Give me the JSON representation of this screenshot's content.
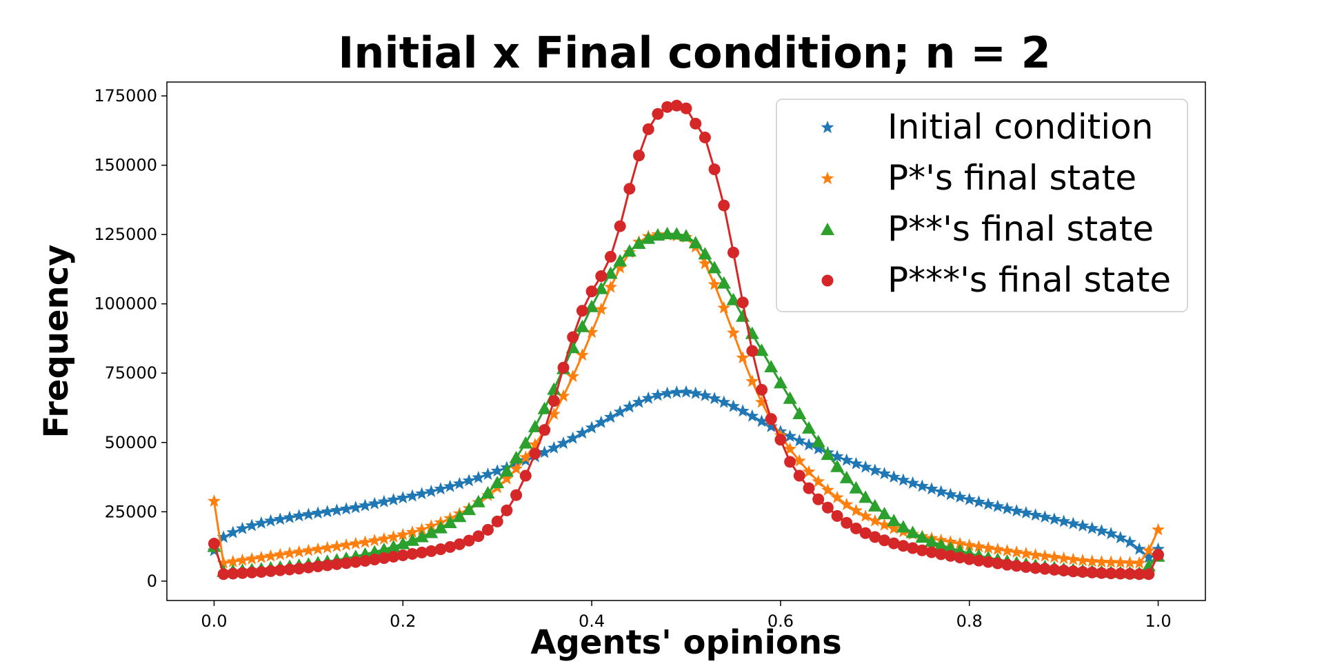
{
  "chart_data": {
    "type": "line",
    "title": "Initial x Final condition; n = 2",
    "xlabel": "Agents' opinions",
    "ylabel": "Frequency",
    "xlim": [
      -0.05,
      1.05
    ],
    "ylim": [
      -7000,
      180000
    ],
    "xticks": [
      0.0,
      0.2,
      0.4,
      0.6,
      0.8,
      1.0
    ],
    "xtick_labels": [
      "0.0",
      "0.2",
      "0.4",
      "0.6",
      "0.8",
      "1.0"
    ],
    "yticks": [
      0,
      25000,
      50000,
      75000,
      100000,
      125000,
      150000,
      175000
    ],
    "ytick_labels": [
      "0",
      "25000",
      "50000",
      "75000",
      "100000",
      "125000",
      "150000",
      "175000"
    ],
    "grid": false,
    "legend_position": "top-right",
    "x": [
      0.0,
      0.01,
      0.02,
      0.03,
      0.04,
      0.05,
      0.06,
      0.07,
      0.08,
      0.09,
      0.1,
      0.11,
      0.12,
      0.13,
      0.14,
      0.15,
      0.16,
      0.17,
      0.18,
      0.19,
      0.2,
      0.21,
      0.22,
      0.23,
      0.24,
      0.25,
      0.26,
      0.27,
      0.28,
      0.29,
      0.3,
      0.31,
      0.32,
      0.33,
      0.34,
      0.35,
      0.36,
      0.37,
      0.38,
      0.39,
      0.4,
      0.41,
      0.42,
      0.43,
      0.44,
      0.45,
      0.46,
      0.47,
      0.48,
      0.49,
      0.5,
      0.51,
      0.52,
      0.53,
      0.54,
      0.55,
      0.56,
      0.57,
      0.58,
      0.59,
      0.6,
      0.61,
      0.62,
      0.63,
      0.64,
      0.65,
      0.66,
      0.67,
      0.68,
      0.69,
      0.7,
      0.71,
      0.72,
      0.73,
      0.74,
      0.75,
      0.76,
      0.77,
      0.78,
      0.79,
      0.8,
      0.81,
      0.82,
      0.83,
      0.84,
      0.85,
      0.86,
      0.87,
      0.88,
      0.89,
      0.9,
      0.91,
      0.92,
      0.93,
      0.94,
      0.95,
      0.96,
      0.97,
      0.98,
      0.99,
      1.0
    ],
    "series": [
      {
        "name": "Initial condition",
        "marker": "star",
        "color": "#1f77b4",
        "values": [
          11000,
          15800,
          17500,
          18900,
          20000,
          20900,
          21700,
          22300,
          22900,
          23500,
          24000,
          24500,
          25000,
          25500,
          26000,
          26500,
          27200,
          27900,
          28600,
          29300,
          30000,
          30700,
          31500,
          32300,
          33200,
          34100,
          35100,
          36200,
          37300,
          38500,
          39700,
          40900,
          42200,
          43500,
          44900,
          46400,
          48000,
          49700,
          51500,
          53400,
          55300,
          57200,
          59100,
          61000,
          62800,
          64500,
          65900,
          67000,
          67700,
          68100,
          68200,
          67700,
          66900,
          65800,
          64500,
          63000,
          61300,
          59500,
          57600,
          55700,
          53900,
          52200,
          50600,
          49100,
          47700,
          46300,
          44900,
          43600,
          42300,
          41100,
          39900,
          38700,
          37500,
          36400,
          35300,
          34200,
          33200,
          32200,
          31200,
          30300,
          29400,
          28500,
          27700,
          26900,
          26100,
          25300,
          24600,
          23800,
          23100,
          22300,
          21500,
          20700,
          19900,
          19000,
          18100,
          17100,
          15600,
          14000,
          11500,
          8500,
          11500
        ]
      },
      {
        "name": "P*'s final state",
        "marker": "star",
        "color": "#ff7f0e",
        "values": [
          28800,
          6500,
          7000,
          7500,
          8000,
          8500,
          9000,
          9500,
          10000,
          10500,
          11000,
          11500,
          12000,
          12500,
          13000,
          13500,
          14000,
          14600,
          15200,
          15900,
          16700,
          17600,
          18600,
          19800,
          21100,
          22600,
          24300,
          26200,
          28400,
          30900,
          33700,
          36900,
          40500,
          44600,
          49200,
          54400,
          60200,
          66700,
          73800,
          81500,
          89700,
          98000,
          106000,
          113000,
          118500,
          122300,
          124300,
          125000,
          124800,
          124500,
          124000,
          120500,
          114500,
          107000,
          98500,
          89500,
          80500,
          72000,
          64500,
          58000,
          52500,
          47600,
          43300,
          39400,
          35900,
          32800,
          30100,
          27600,
          25400,
          23400,
          21700,
          20200,
          18900,
          17800,
          16900,
          16100,
          15400,
          14700,
          14100,
          13500,
          12900,
          12400,
          11900,
          11400,
          10900,
          10400,
          9900,
          9400,
          9000,
          8600,
          8200,
          7800,
          7400,
          7100,
          6900,
          6800,
          6700,
          6600,
          6500,
          11000,
          18500
        ]
      },
      {
        "name": "P**'s final state",
        "marker": "triangle",
        "color": "#2ca02c",
        "values": [
          12500,
          3500,
          3700,
          3900,
          4100,
          4400,
          4700,
          5000,
          5300,
          5700,
          6100,
          6600,
          7100,
          7600,
          8200,
          8900,
          9700,
          10500,
          11400,
          12400,
          13500,
          14700,
          16000,
          17500,
          19200,
          21100,
          23300,
          25800,
          28600,
          31800,
          35500,
          39700,
          44500,
          49800,
          55700,
          62200,
          69200,
          76600,
          84200,
          91800,
          99000,
          105500,
          111000,
          115500,
          119000,
          121800,
          123600,
          124800,
          125300,
          125200,
          124500,
          122000,
          118000,
          113000,
          107500,
          101500,
          95500,
          89300,
          83200,
          77300,
          71500,
          65900,
          60400,
          55200,
          50300,
          45700,
          41300,
          37300,
          33600,
          30200,
          27100,
          24300,
          21800,
          19500,
          17500,
          15800,
          14300,
          13000,
          11900,
          10900,
          10000,
          9200,
          8500,
          7800,
          7200,
          6600,
          6100,
          5600,
          5200,
          4800,
          4400,
          4100,
          3800,
          3600,
          3400,
          3200,
          3100,
          3000,
          2900,
          5500,
          9000
        ]
      },
      {
        "name": "P***'s final state",
        "marker": "circle",
        "color": "#d62728",
        "values": [
          13500,
          2500,
          2700,
          2900,
          3100,
          3300,
          3600,
          3900,
          4200,
          4500,
          4900,
          5300,
          5700,
          6100,
          6500,
          6900,
          7300,
          7800,
          8300,
          8800,
          9300,
          9800,
          10300,
          10800,
          11500,
          12300,
          13300,
          14600,
          16200,
          18500,
          21500,
          25500,
          31000,
          38000,
          46000,
          54500,
          65000,
          77000,
          88000,
          97500,
          104500,
          110000,
          117000,
          128000,
          141500,
          153500,
          163000,
          168500,
          171000,
          171500,
          170500,
          165000,
          160000,
          148500,
          135500,
          118500,
          100500,
          83000,
          69000,
          58500,
          51000,
          43000,
          38000,
          33500,
          29500,
          26500,
          23500,
          21000,
          19000,
          17300,
          15900,
          14700,
          13600,
          12700,
          11900,
          11100,
          10400,
          9700,
          9100,
          8500,
          7900,
          7400,
          6900,
          6400,
          5900,
          5500,
          5100,
          4700,
          4400,
          4100,
          3800,
          3500,
          3300,
          3100,
          2900,
          2800,
          2700,
          2600,
          2500,
          2500,
          9500
        ]
      }
    ]
  }
}
